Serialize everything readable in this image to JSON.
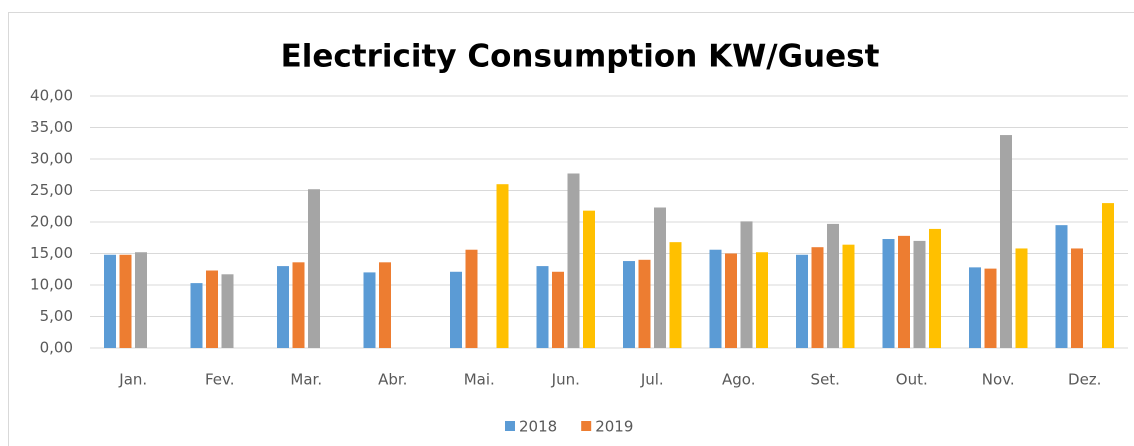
{
  "chart_data": {
    "type": "bar",
    "title": "Electricity Consumption KW/Guest",
    "categories": [
      "Jan.",
      "Fev.",
      "Mar.",
      "Abr.",
      "Mai.",
      "Jun.",
      "Jul.",
      "Ago.",
      "Set.",
      "Out.",
      "Nov.",
      "Dez."
    ],
    "series": [
      {
        "name": "2018",
        "color": "#5b9bd5",
        "values": [
          14.8,
          10.3,
          13.0,
          12.0,
          12.1,
          13.0,
          13.8,
          15.6,
          14.8,
          17.3,
          12.8,
          19.5
        ]
      },
      {
        "name": "2019",
        "color": "#ed7d31",
        "values": [
          14.8,
          12.3,
          13.6,
          13.6,
          15.6,
          12.1,
          14.0,
          15.0,
          16.0,
          17.8,
          12.6,
          15.8
        ]
      },
      {
        "color": "#a5a5a5",
        "values": [
          15.2,
          11.7,
          25.2,
          null,
          null,
          27.7,
          22.3,
          20.1,
          19.7,
          17.0,
          33.8,
          null
        ]
      },
      {
        "color": "#ffc000",
        "values": [
          null,
          null,
          null,
          null,
          26.0,
          21.8,
          16.8,
          15.2,
          16.4,
          18.9,
          15.8,
          23.0
        ]
      }
    ],
    "ylim": [
      0,
      40
    ],
    "yticks": [
      {
        "value": 0,
        "label": "0,00"
      },
      {
        "value": 5,
        "label": "5,00"
      },
      {
        "value": 10,
        "label": "10,00"
      },
      {
        "value": 15,
        "label": "15,00"
      },
      {
        "value": 20,
        "label": "20,00"
      },
      {
        "value": 25,
        "label": "25,00"
      },
      {
        "value": 30,
        "label": "30,00"
      },
      {
        "value": 35,
        "label": "35,00"
      },
      {
        "value": 40,
        "label": "40,00"
      }
    ],
    "grid": true,
    "legend": "bottom"
  }
}
